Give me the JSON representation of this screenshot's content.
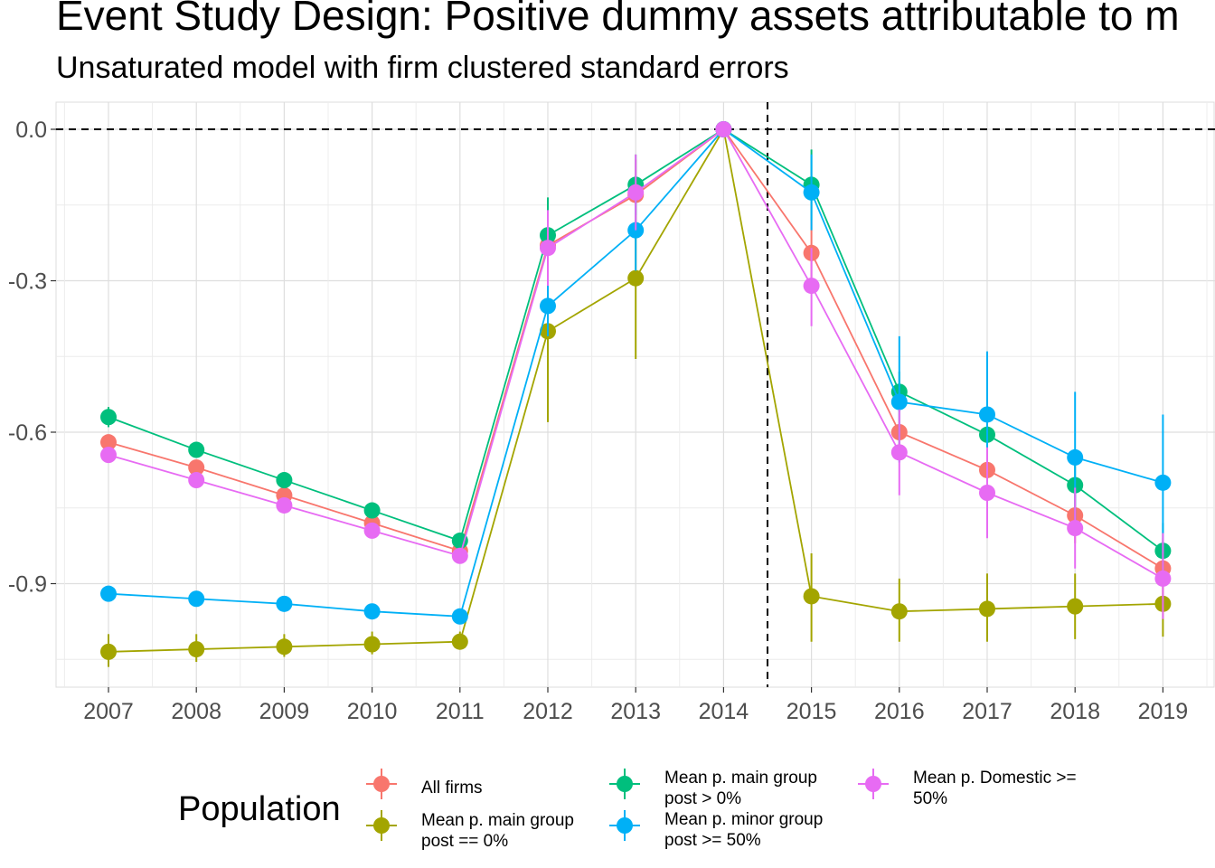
{
  "title": "Event Study Design: Positive dummy assets attributable to m",
  "subtitle": "Unsaturated model with firm clustered standard errors",
  "chart_data": {
    "type": "line",
    "title": "Event Study Design: Positive dummy assets attributable to m",
    "subtitle": "Unsaturated model with firm clustered standard errors",
    "xlabel": "",
    "ylabel": "",
    "x": [
      "2007",
      "2008",
      "2009",
      "2010",
      "2011",
      "2012",
      "2013",
      "2014",
      "2015",
      "2016",
      "2017",
      "2018",
      "2019"
    ],
    "y_ticks": [
      "0.0",
      "-0.3",
      "-0.6",
      "-0.9"
    ],
    "y_tick_values": [
      0.0,
      -0.3,
      -0.6,
      -0.9
    ],
    "ylim": [
      -1.11,
      0.05
    ],
    "grid": true,
    "reference_lines": {
      "horizontal_y": 0.0,
      "vertical_x_between": [
        "2014",
        "2015"
      ],
      "style": "dashed"
    },
    "legend": {
      "title": "Population",
      "position": "bottom"
    },
    "series": [
      {
        "name": "All firms",
        "color": "#F8766D",
        "values": [
          -0.62,
          -0.67,
          -0.725,
          -0.78,
          -0.835,
          -0.23,
          -0.13,
          0.0,
          -0.245,
          -0.6,
          -0.675,
          -0.765,
          -0.87
        ],
        "ci_low": [
          null,
          null,
          null,
          null,
          null,
          -0.3,
          -0.2,
          null,
          -0.31,
          -0.65,
          -0.72,
          -0.82,
          -0.93
        ],
        "ci_high": [
          null,
          null,
          null,
          null,
          null,
          -0.16,
          -0.06,
          null,
          -0.18,
          -0.55,
          -0.63,
          -0.71,
          -0.81
        ]
      },
      {
        "name": "Mean p. main group post == 0%",
        "color": "#A3A500",
        "values": [
          -1.035,
          -1.03,
          -1.025,
          -1.02,
          -1.015,
          -0.4,
          -0.295,
          0.0,
          -0.925,
          -0.955,
          -0.95,
          -0.945,
          -0.94
        ],
        "ci_low": [
          -1.065,
          -1.055,
          -1.045,
          -1.04,
          -1.03,
          -0.58,
          -0.455,
          null,
          -1.015,
          -1.015,
          -1.015,
          -1.01,
          -1.005
        ],
        "ci_high": [
          -1.0,
          -1.0,
          -1.0,
          -0.995,
          -0.995,
          -0.215,
          -0.135,
          null,
          -0.84,
          -0.89,
          -0.88,
          -0.88,
          -0.875
        ]
      },
      {
        "name": "Mean p. main group post > 0%",
        "color": "#00BF7D",
        "values": [
          -0.57,
          -0.635,
          -0.695,
          -0.755,
          -0.815,
          -0.21,
          -0.11,
          0.0,
          -0.11,
          -0.52,
          -0.605,
          -0.705,
          -0.835
        ],
        "ci_low": [
          -0.59,
          null,
          null,
          null,
          null,
          -0.28,
          -0.17,
          null,
          -0.18,
          -0.56,
          -0.65,
          -0.75,
          -0.89
        ],
        "ci_high": [
          -0.55,
          null,
          null,
          null,
          null,
          -0.135,
          -0.05,
          null,
          -0.04,
          -0.48,
          -0.56,
          -0.66,
          -0.78
        ]
      },
      {
        "name": "Mean p. minor group post >= 50%",
        "color": "#00B0F6",
        "values": [
          -0.92,
          -0.93,
          -0.94,
          -0.955,
          -0.965,
          -0.35,
          -0.2,
          0.0,
          -0.125,
          -0.54,
          -0.565,
          -0.65,
          -0.7
        ],
        "ci_low": [
          null,
          null,
          null,
          null,
          null,
          -0.41,
          -0.28,
          null,
          -0.2,
          -0.66,
          -0.69,
          -0.78,
          -0.84
        ],
        "ci_high": [
          null,
          null,
          null,
          null,
          null,
          -0.29,
          -0.12,
          null,
          -0.05,
          -0.41,
          -0.44,
          -0.52,
          -0.565
        ]
      },
      {
        "name": "Mean p. Domestic >= 50%",
        "color": "#E76BF3",
        "values": [
          -0.645,
          -0.695,
          -0.745,
          -0.795,
          -0.845,
          -0.235,
          -0.125,
          0.0,
          -0.31,
          -0.64,
          -0.72,
          -0.79,
          -0.89
        ],
        "ci_low": [
          null,
          null,
          null,
          null,
          null,
          -0.31,
          -0.2,
          null,
          -0.39,
          -0.725,
          -0.81,
          -0.87,
          -0.97
        ],
        "ci_high": [
          null,
          null,
          null,
          null,
          null,
          -0.16,
          -0.05,
          null,
          -0.235,
          -0.555,
          -0.63,
          -0.71,
          -0.8
        ]
      }
    ]
  },
  "legend": {
    "title": "Population",
    "entries": [
      {
        "lines": [
          "All firms"
        ]
      },
      {
        "lines": [
          "Mean p. main group",
          "post == 0%"
        ]
      },
      {
        "lines": [
          "Mean p. main group",
          "post > 0%"
        ]
      },
      {
        "lines": [
          "Mean p. minor group",
          "post >= 50%"
        ]
      },
      {
        "lines": [
          "Mean p. Domestic >=",
          "50%"
        ]
      }
    ]
  }
}
